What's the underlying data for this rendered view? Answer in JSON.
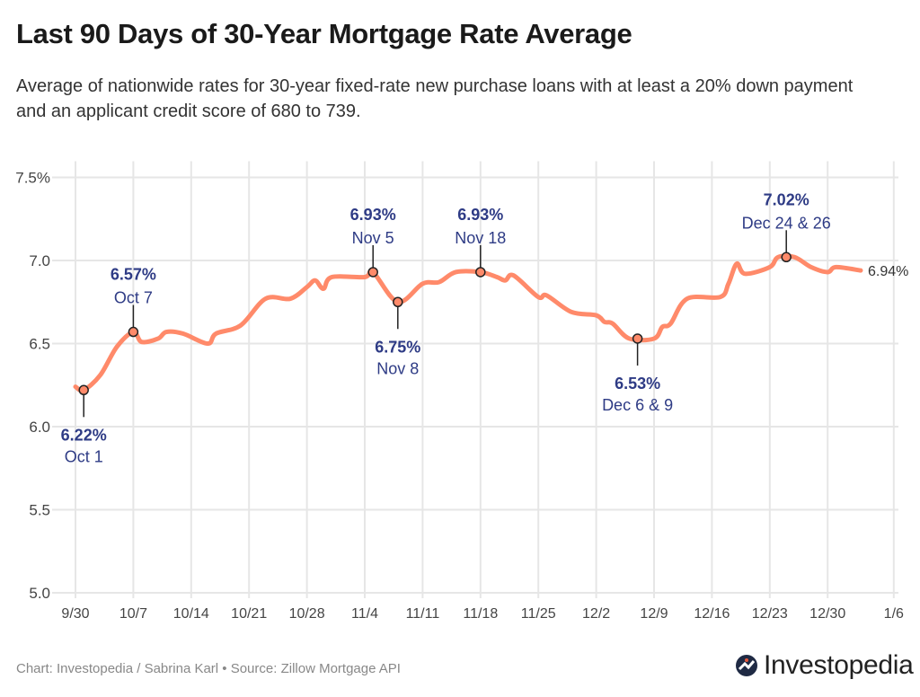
{
  "title": "Last 90 Days of 30-Year Mortgage Rate Average",
  "subtitle": "Average of nationwide rates for 30-year fixed-rate new purchase loans with at least a 20% down payment and an applicant credit score of 680 to 739.",
  "footer": "Chart: Investopedia / Sabrina Karl • Source: Zillow Mortgage API",
  "logo": "Investopedia",
  "colors": {
    "line": "#ff8a6a",
    "annotation": "#2e3b85",
    "grid": "#e6e6e6"
  },
  "chart_data": {
    "type": "line",
    "title": "Last 90 Days of 30-Year Mortgage Rate Average",
    "ylim": [
      5.0,
      7.5
    ],
    "grid": true,
    "y_ticks": [
      {
        "v": 7.5,
        "label": "7.5%"
      },
      {
        "v": 7.0,
        "label": "7.0"
      },
      {
        "v": 6.5,
        "label": "6.5"
      },
      {
        "v": 6.0,
        "label": "6.0"
      },
      {
        "v": 5.5,
        "label": "5.5"
      },
      {
        "v": 5.0,
        "label": "5.0"
      }
    ],
    "x_ticks": [
      "9/30",
      "10/7",
      "10/14",
      "10/21",
      "10/28",
      "11/4",
      "11/11",
      "11/18",
      "11/25",
      "12/2",
      "12/9",
      "12/16",
      "12/23",
      "12/30",
      "1/6"
    ],
    "x": [
      "9/30",
      "10/1",
      "10/3",
      "10/5",
      "10/7",
      "10/8",
      "10/10",
      "10/11",
      "10/13",
      "10/16",
      "10/17",
      "10/20",
      "10/23",
      "10/26",
      "10/28",
      "10/29",
      "10/30",
      "10/31",
      "11/4",
      "11/5",
      "11/8",
      "11/11",
      "11/13",
      "11/15",
      "11/18",
      "11/20",
      "11/21",
      "11/22",
      "11/25",
      "11/26",
      "11/29",
      "12/2",
      "12/3",
      "12/4",
      "12/6",
      "12/9",
      "12/10",
      "12/11",
      "12/13",
      "12/17",
      "12/18",
      "12/19",
      "12/20",
      "12/23",
      "12/24",
      "12/26",
      "12/28",
      "12/30",
      "12/31",
      "1/2"
    ],
    "values": [
      6.24,
      6.22,
      6.31,
      6.48,
      6.57,
      6.51,
      6.53,
      6.57,
      6.56,
      6.5,
      6.56,
      6.61,
      6.77,
      6.77,
      6.84,
      6.88,
      6.83,
      6.9,
      6.9,
      6.93,
      6.75,
      6.86,
      6.87,
      6.93,
      6.93,
      6.9,
      6.88,
      6.91,
      6.78,
      6.79,
      6.69,
      6.67,
      6.63,
      6.62,
      6.53,
      6.53,
      6.6,
      6.62,
      6.77,
      6.78,
      6.86,
      6.98,
      6.92,
      6.96,
      7.02,
      7.02,
      6.96,
      6.93,
      6.96,
      6.94
    ],
    "end_label": "6.94%",
    "annotations": [
      {
        "date": "10/1",
        "value": 6.22,
        "value_label": "6.22%",
        "date_label": "Oct 1",
        "position": "below"
      },
      {
        "date": "10/7",
        "value": 6.57,
        "value_label": "6.57%",
        "date_label": "Oct 7",
        "position": "above"
      },
      {
        "date": "11/5",
        "value": 6.93,
        "value_label": "6.93%",
        "date_label": "Nov 5",
        "position": "above"
      },
      {
        "date": "11/8",
        "value": 6.75,
        "value_label": "6.75%",
        "date_label": "Nov 8",
        "position": "below"
      },
      {
        "date": "11/18",
        "value": 6.93,
        "value_label": "6.93%",
        "date_label": "Nov 18",
        "position": "above"
      },
      {
        "date": "12/7",
        "value": 6.53,
        "value_label": "6.53%",
        "date_label": "Dec 6 & 9",
        "position": "below"
      },
      {
        "date": "12/25",
        "value": 7.02,
        "value_label": "7.02%",
        "date_label": "Dec 24 & 26",
        "position": "above"
      }
    ]
  }
}
